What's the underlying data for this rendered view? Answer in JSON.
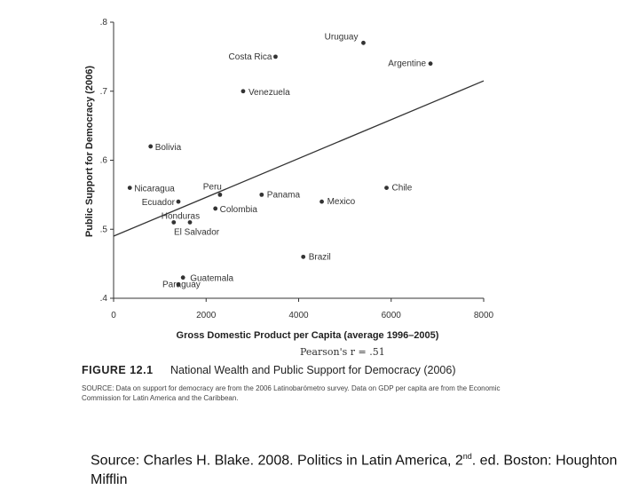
{
  "chart_data": {
    "type": "scatter",
    "title": "",
    "xlabel": "Gross Domestic Product per Capita (average 1996–2005)",
    "ylabel": "Public Support for Democracy (2006)",
    "xlim": [
      0,
      8000
    ],
    "ylim": [
      0.4,
      0.8
    ],
    "x_ticks": [
      0,
      2000,
      4000,
      6000,
      8000
    ],
    "x_tick_labels": [
      "0",
      "2000",
      "4000",
      "6000",
      "8000"
    ],
    "y_ticks": [
      0.4,
      0.5,
      0.6,
      0.7,
      0.8
    ],
    "y_tick_labels": [
      ".4",
      ".5",
      ".6",
      ".7",
      ".8"
    ],
    "grid": false,
    "points": [
      {
        "label": "Uruguay",
        "x": 5400,
        "y": 0.77
      },
      {
        "label": "Costa Rica",
        "x": 3500,
        "y": 0.75
      },
      {
        "label": "Argentine",
        "x": 6850,
        "y": 0.74
      },
      {
        "label": "Venezuela",
        "x": 2800,
        "y": 0.7
      },
      {
        "label": "Bolivia",
        "x": 800,
        "y": 0.62
      },
      {
        "label": "Nicaragua",
        "x": 350,
        "y": 0.56
      },
      {
        "label": "Ecuador",
        "x": 1400,
        "y": 0.54
      },
      {
        "label": "Honduras",
        "x": 1300,
        "y": 0.51
      },
      {
        "label": "Peru",
        "x": 2300,
        "y": 0.55
      },
      {
        "label": "Colombia",
        "x": 2200,
        "y": 0.53
      },
      {
        "label": "El Salvador",
        "x": 1650,
        "y": 0.51
      },
      {
        "label": "Panama",
        "x": 3200,
        "y": 0.55
      },
      {
        "label": "Mexico",
        "x": 4500,
        "y": 0.54
      },
      {
        "label": "Chile",
        "x": 5900,
        "y": 0.56
      },
      {
        "label": "Brazil",
        "x": 4100,
        "y": 0.46
      },
      {
        "label": "Guatemala",
        "x": 1500,
        "y": 0.43
      },
      {
        "label": "Paraguay",
        "x": 1400,
        "y": 0.42
      }
    ],
    "regression_line": {
      "x": [
        0,
        8000
      ],
      "y": [
        0.49,
        0.715
      ]
    },
    "annotation": "Pearson's r = .51"
  },
  "caption": {
    "figure_number": "FIGURE 12.1",
    "figure_title": "National Wealth and Public Support for Democracy (2006)",
    "source_note": "SOURCE: Data on support for democracy are from the 2006 Latinobarómetro survey. Data on GDP per capita are from the Economic Commission for Latin America and the Caribbean."
  },
  "citation": {
    "text_before": "Source: Charles H. Blake. 2008. Politics in Latin America, 2",
    "superscript": "nd",
    "text_after": ". ed. Boston: Houghton Mifflin"
  },
  "colors": {
    "axis": "#333333",
    "point": "#333333",
    "line": "#333333",
    "text": "#222222"
  }
}
